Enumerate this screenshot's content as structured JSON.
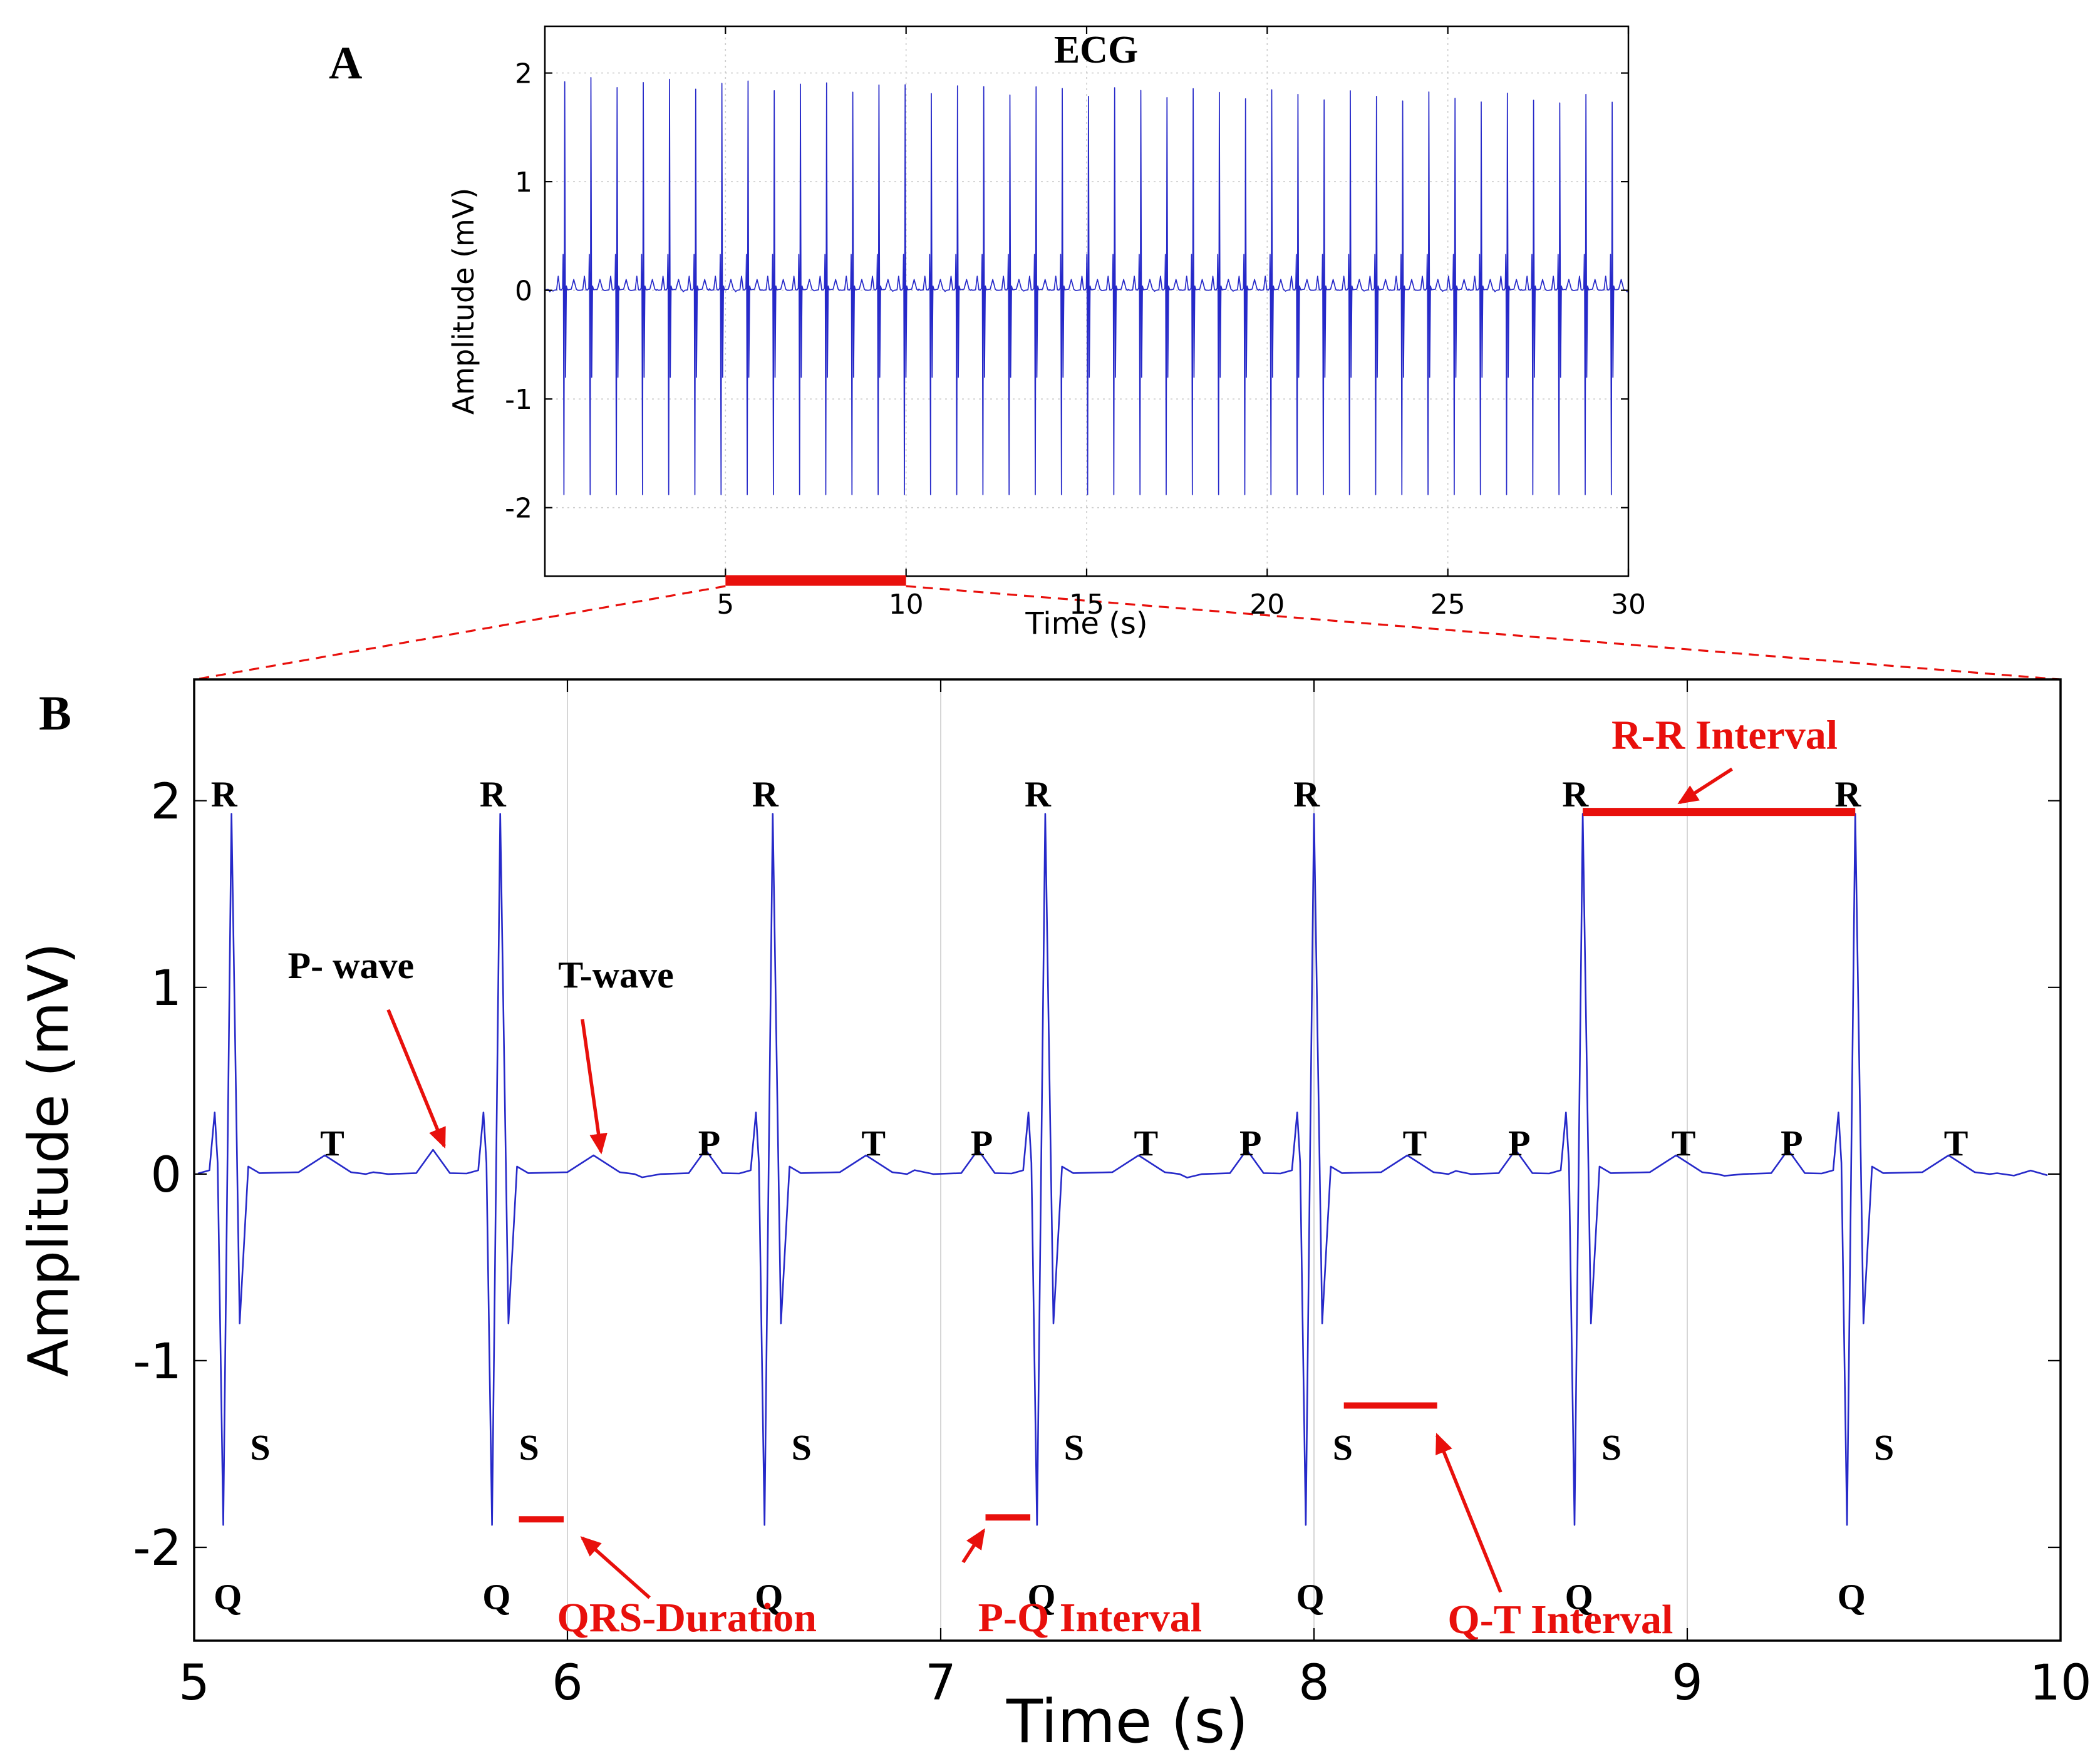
{
  "figure": {
    "panel_a_label": "A",
    "panel_b_label": "B"
  },
  "colors": {
    "trace": "#2629c9",
    "annotation": "#e8100c",
    "text": "#000000",
    "grid": "#cccccc",
    "background": "#ffffff"
  },
  "beat_shape": {
    "p_offset": -0.18,
    "p_amp": 0.13,
    "shoulder_offset": -0.045,
    "shoulder_amp": 0.33,
    "q_offset": -0.022,
    "q_amp": -1.88,
    "r_amp": 1.93,
    "s_offset": 0.022,
    "s_amp": -0.8,
    "t_offset": 0.25,
    "t_amp": 0.1
  },
  "chart_data": [
    {
      "id": "ecg-overview",
      "type": "line",
      "title": "ECG",
      "xlabel": "Time (s)",
      "ylabel": "Amplitude (mV)",
      "xlim": [
        0,
        30
      ],
      "ylim": [
        -2.63,
        2.43
      ],
      "xticks": [
        5,
        10,
        15,
        20,
        25,
        30
      ],
      "yticks": [
        -2,
        -1,
        0,
        1,
        2
      ],
      "grid": true,
      "legend": false,
      "beats": {
        "start": 0.55,
        "period": 0.725,
        "count": 41,
        "r_amp_base": 1.92,
        "r_amp_taper": 0.17,
        "r_amp_jitter": 0.05
      },
      "zoom_region": {
        "x0": 5,
        "x1": 10
      }
    },
    {
      "id": "ecg-zoom",
      "type": "line",
      "title": "",
      "xlabel": "Time (s)",
      "ylabel": "Amplitude (mV)",
      "xlim": [
        5,
        10
      ],
      "ylim": [
        -2.5,
        2.65
      ],
      "xticks": [
        5,
        6,
        7,
        8,
        9,
        10
      ],
      "yticks": [
        -2,
        -1,
        0,
        1,
        2
      ],
      "grid": "vertical",
      "legend": false,
      "beat_times": [
        5.1,
        5.82,
        6.55,
        7.28,
        8.0,
        8.72,
        9.45
      ],
      "wave_point_labels": {
        "r": "R",
        "q": "Q",
        "s": "S",
        "p": "P",
        "t": "T",
        "p_label_beats": [
          2,
          3,
          4,
          5,
          6
        ],
        "t_label_beats": [
          0,
          2,
          3,
          4,
          5,
          6
        ]
      },
      "annotations": {
        "rr_interval": {
          "label": "R-R Interval",
          "text_x": 9.1,
          "text_y": 2.28,
          "line": [
            [
              8.72,
              1.94
            ],
            [
              9.45,
              1.94
            ]
          ],
          "line_width": 13,
          "arrow": [
            [
              9.12,
              2.17
            ],
            [
              8.98,
              1.99
            ]
          ]
        },
        "qrs_duration": {
          "label": "QRS-Duration",
          "text_x": 6.32,
          "text_y": -2.45,
          "line": [
            [
              5.87,
              -1.85
            ],
            [
              5.99,
              -1.85
            ]
          ],
          "line_width": 10,
          "arrow": [
            [
              6.22,
              -2.27
            ],
            [
              6.04,
              -1.95
            ]
          ]
        },
        "pq_interval": {
          "label": "P-Q Interval",
          "text_x": 7.4,
          "text_y": -2.45,
          "line": [
            [
              7.12,
              -1.84
            ],
            [
              7.24,
              -1.84
            ]
          ],
          "line_width": 10,
          "arrow": [
            [
              7.06,
              -2.08
            ],
            [
              7.115,
              -1.91
            ]
          ]
        },
        "qt_interval": {
          "label": "Q-T Interval",
          "text_x": 8.66,
          "text_y": -2.46,
          "line": [
            [
              8.08,
              -1.24
            ],
            [
              8.33,
              -1.24
            ]
          ],
          "line_width": 10,
          "arrow": [
            [
              8.5,
              -2.24
            ],
            [
              8.33,
              -1.4
            ]
          ]
        },
        "p_wave": {
          "label": "P- wave",
          "color": "#000000",
          "font_size": 60,
          "text_x": 5.42,
          "text_y": 1.05,
          "arrow": [
            [
              5.52,
              0.88
            ],
            [
              5.67,
              0.15
            ]
          ]
        },
        "t_wave": {
          "label": "T-wave",
          "color": "#000000",
          "font_size": 60,
          "text_x": 6.13,
          "text_y": 1.0,
          "arrow": [
            [
              6.04,
              0.83
            ],
            [
              6.09,
              0.12
            ]
          ]
        }
      }
    }
  ]
}
